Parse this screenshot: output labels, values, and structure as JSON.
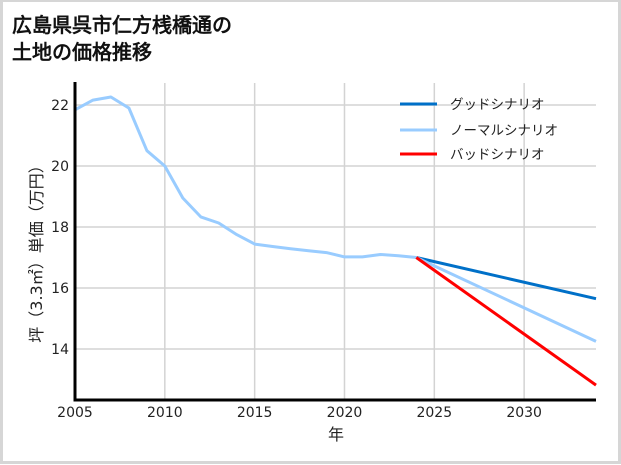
{
  "title": {
    "line1": "広島県呉市仁方桟橋通の",
    "line2": "土地の価格推移"
  },
  "chart_data": {
    "type": "line",
    "title": "広島県呉市仁方桟橋通の土地の価格推移",
    "xlabel": "年",
    "ylabel": "坪（3.3㎡）単価（万円）",
    "xlim": [
      2005,
      2034
    ],
    "ylim": [
      12.33,
      22.72
    ],
    "xticks": [
      2005,
      2010,
      2015,
      2020,
      2025,
      2030
    ],
    "yticks": [
      14,
      16,
      18,
      20,
      22
    ],
    "grid": true,
    "legend_position": "upper right",
    "series": [
      {
        "name": "グッドシナリオ",
        "color": "#0070c8",
        "x": [
          2024,
          2034
        ],
        "values": [
          17.0,
          15.65
        ]
      },
      {
        "name": "ノーマルシナリオ",
        "color": "#99ccff",
        "x": [
          2005,
          2006,
          2007,
          2008,
          2009,
          2010,
          2011,
          2012,
          2013,
          2014,
          2015,
          2016,
          2017,
          2018,
          2019,
          2020,
          2021,
          2022,
          2023,
          2024,
          2034
        ],
        "values": [
          21.84,
          22.16,
          22.26,
          21.9,
          20.5,
          20.0,
          18.95,
          18.33,
          18.13,
          17.75,
          17.44,
          17.36,
          17.29,
          17.22,
          17.16,
          17.02,
          17.02,
          17.1,
          17.06,
          17.0,
          14.25
        ]
      },
      {
        "name": "バッドシナリオ",
        "color": "#ff0000",
        "x": [
          2024,
          2034
        ],
        "values": [
          17.0,
          12.82
        ]
      }
    ]
  }
}
